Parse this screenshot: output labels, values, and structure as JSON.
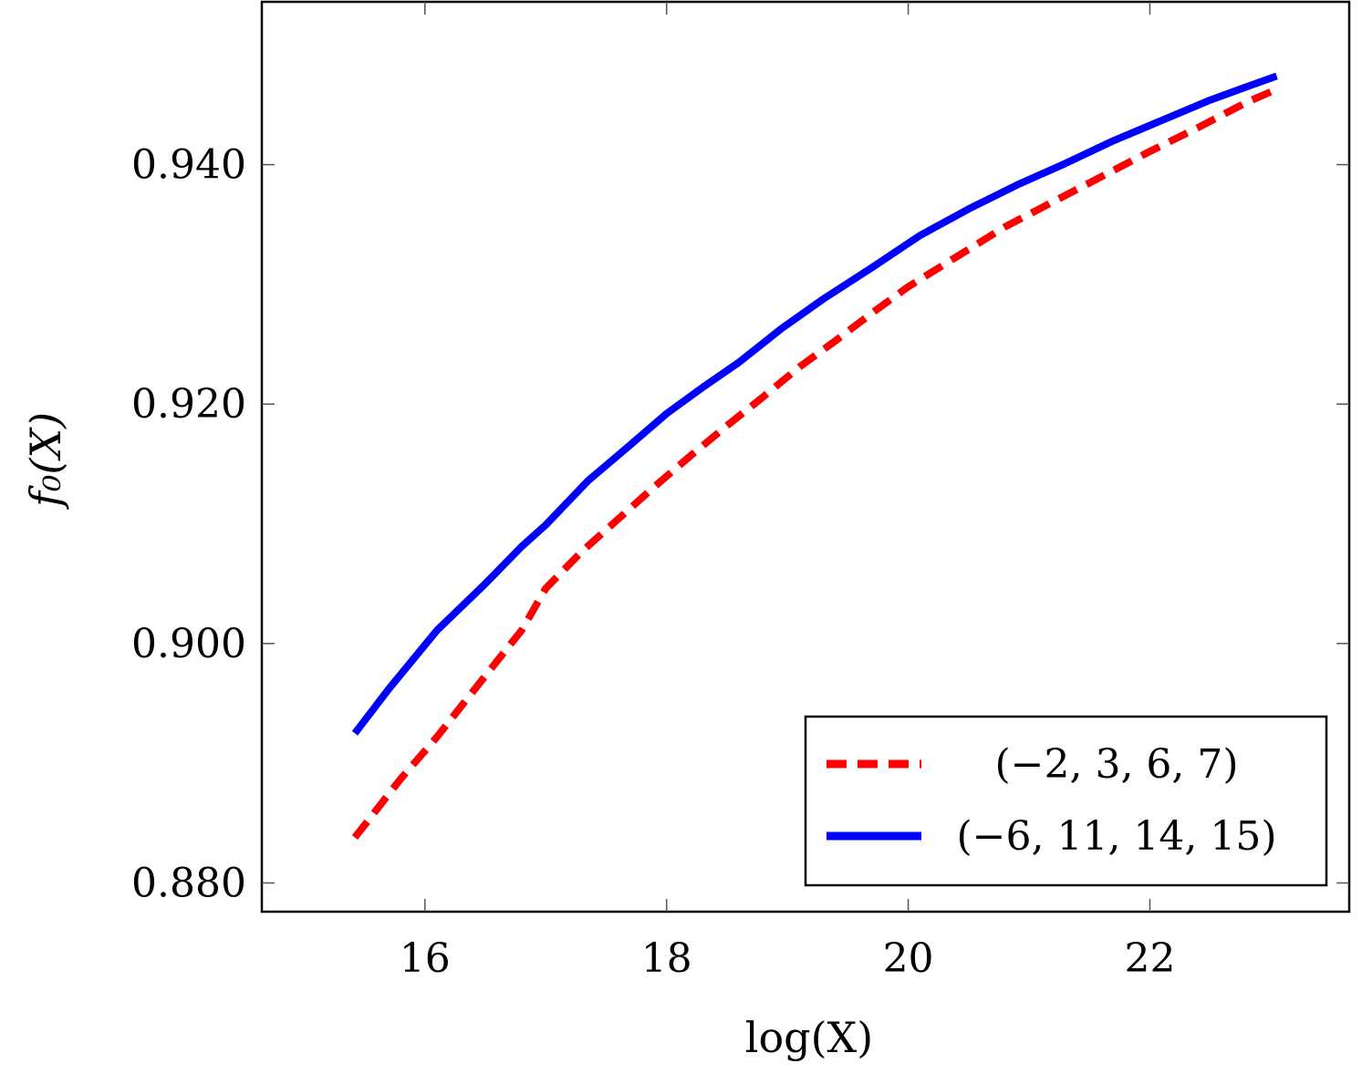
{
  "chart_data": {
    "type": "line",
    "xlabel": "log(X)",
    "ylabel": "f₀(X)",
    "xlim": [
      14.65,
      23.65
    ],
    "ylim": [
      0.8776,
      0.9536
    ],
    "x_ticks": [
      16,
      18,
      20,
      22
    ],
    "x_tick_labels": [
      "16",
      "18",
      "20",
      "22"
    ],
    "y_ticks": [
      0.88,
      0.9,
      0.92,
      0.94
    ],
    "y_tick_labels": [
      "0.880",
      "0.900",
      "0.920",
      "0.940"
    ],
    "grid": false,
    "legend_position": "bottom-right",
    "series": [
      {
        "name": "(−2, 3, 6, 7)",
        "color": "#ff0000",
        "style": "dashed",
        "x": [
          15.42,
          15.8,
          16.1,
          16.5,
          16.8,
          17.0,
          17.3,
          17.6,
          17.9,
          18.2,
          18.5,
          18.8,
          19.1,
          19.4,
          19.7,
          20.0,
          20.4,
          20.8,
          21.2,
          21.6,
          22.0,
          22.4,
          22.8,
          23.05
        ],
        "y": [
          0.8838,
          0.8887,
          0.8922,
          0.8973,
          0.9011,
          0.9046,
          0.9077,
          0.9104,
          0.9131,
          0.9157,
          0.9182,
          0.9206,
          0.9231,
          0.9253,
          0.9276,
          0.9298,
          0.9323,
          0.9348,
          0.9369,
          0.939,
          0.9411,
          0.9431,
          0.9452,
          0.9463
        ]
      },
      {
        "name": "(−6, 11, 14, 15)",
        "color": "#0000ff",
        "style": "solid",
        "x": [
          15.42,
          15.7,
          16.1,
          16.5,
          16.8,
          17.0,
          17.35,
          17.7,
          18.0,
          18.3,
          18.6,
          18.95,
          19.3,
          19.7,
          20.1,
          20.5,
          20.9,
          21.3,
          21.7,
          22.1,
          22.5,
          22.8,
          23.05
        ],
        "y": [
          0.8925,
          0.8962,
          0.9011,
          0.905,
          0.9081,
          0.9099,
          0.9136,
          0.9166,
          0.9192,
          0.9214,
          0.9235,
          0.9263,
          0.9288,
          0.9314,
          0.9341,
          0.9363,
          0.9383,
          0.9401,
          0.942,
          0.9437,
          0.9454,
          0.9465,
          0.9474
        ]
      }
    ]
  }
}
